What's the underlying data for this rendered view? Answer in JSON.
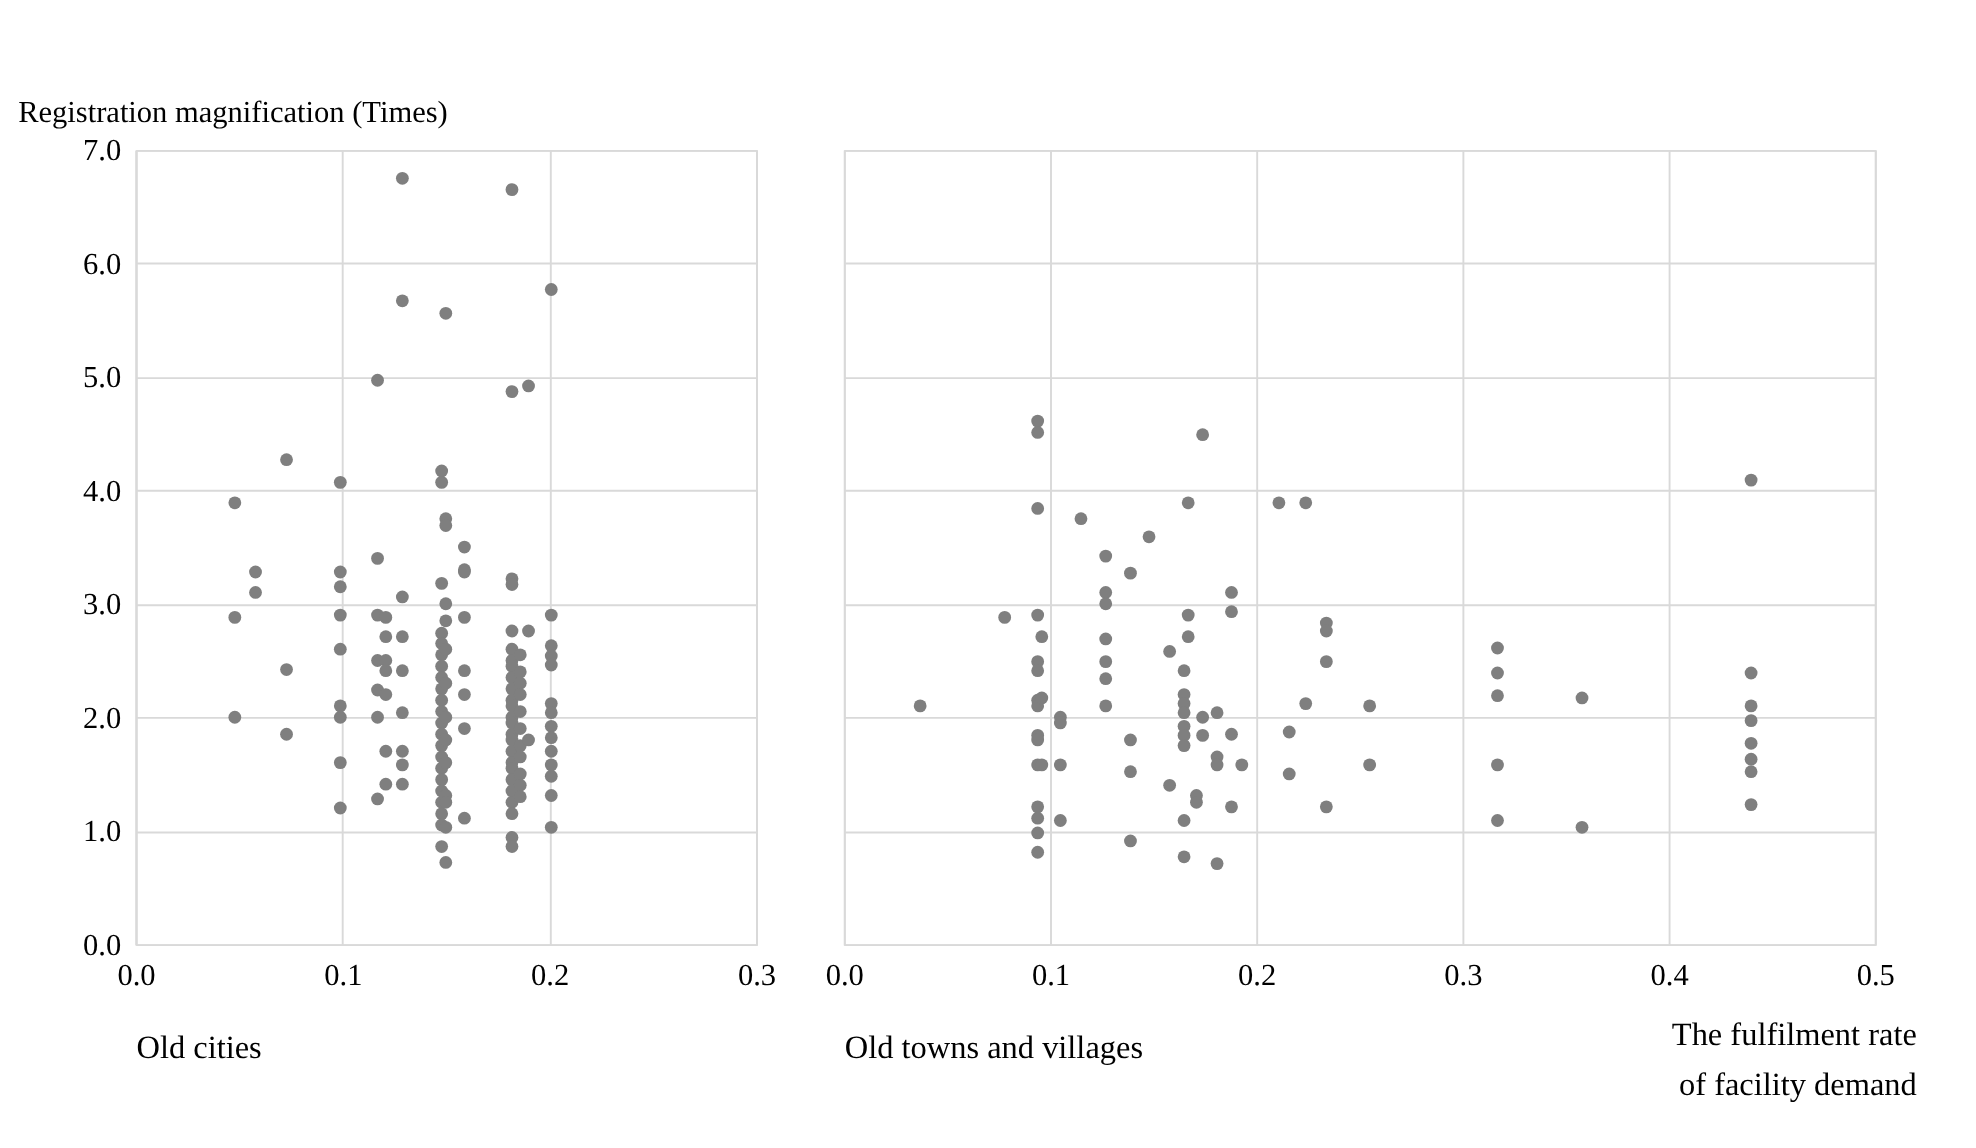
{
  "chart_data": [
    {
      "type": "scatter",
      "ylabel": "Registration magnification (Times)",
      "xlabel": "Old cities",
      "xlim": [
        0,
        0.3
      ],
      "xticks": [
        {
          "value": 0,
          "label": "0.0"
        },
        0.1,
        0.2,
        0.3
      ],
      "ylim": [
        0,
        7
      ],
      "yticks": [
        {
          "value": 0,
          "label": "0.0"
        },
        {
          "value": 1,
          "label": "1.0"
        },
        {
          "value": 2,
          "label": "2.0"
        },
        {
          "value": 3,
          "label": "3.0"
        },
        {
          "value": 4,
          "label": "4.0"
        },
        {
          "value": 5,
          "label": "5.0"
        },
        {
          "value": 6,
          "label": "6.0"
        },
        {
          "value": 7,
          "label": "7.0"
        }
      ],
      "grid": true,
      "marker": "circle",
      "series": [
        {
          "color": "#7f7f7f",
          "x": [
            0.048,
            0.048,
            0.048,
            0.058,
            0.058,
            0.073,
            0.073,
            0.073,
            0.099,
            0.099,
            0.099,
            0.099,
            0.099,
            0.099,
            0.099,
            0.099,
            0.099,
            0.117,
            0.117,
            0.117,
            0.117,
            0.117,
            0.117,
            0.117,
            0.121,
            0.121,
            0.121,
            0.121,
            0.121,
            0.121,
            0.121,
            0.129,
            0.129,
            0.129,
            0.129,
            0.129,
            0.129,
            0.129,
            0.129,
            0.129,
            0.148,
            0.148,
            0.148,
            0.148,
            0.148,
            0.148,
            0.148,
            0.148,
            0.148,
            0.148,
            0.148,
            0.148,
            0.148,
            0.148,
            0.148,
            0.148,
            0.148,
            0.148,
            0.148,
            0.148,
            0.148,
            0.148,
            0.15,
            0.15,
            0.15,
            0.15,
            0.15,
            0.15,
            0.15,
            0.15,
            0.15,
            0.15,
            0.15,
            0.15,
            0.15,
            0.15,
            0.159,
            0.159,
            0.159,
            0.159,
            0.159,
            0.159,
            0.159,
            0.159,
            0.182,
            0.182,
            0.182,
            0.182,
            0.182,
            0.182,
            0.182,
            0.182,
            0.182,
            0.182,
            0.182,
            0.182,
            0.182,
            0.182,
            0.182,
            0.182,
            0.182,
            0.182,
            0.182,
            0.182,
            0.182,
            0.182,
            0.182,
            0.182,
            0.182,
            0.186,
            0.186,
            0.186,
            0.186,
            0.186,
            0.186,
            0.186,
            0.186,
            0.186,
            0.186,
            0.186,
            0.19,
            0.19,
            0.19,
            0.201,
            0.201,
            0.201,
            0.201,
            0.201,
            0.201,
            0.201,
            0.201,
            0.201,
            0.201,
            0.201,
            0.201,
            0.201,
            0.201
          ],
          "values": [
            3.89,
            2.88,
            2.0,
            3.28,
            3.1,
            4.27,
            2.42,
            1.85,
            4.07,
            3.28,
            3.15,
            2.9,
            2.6,
            2.1,
            2.0,
            1.6,
            1.2,
            4.97,
            3.4,
            2.9,
            2.5,
            2.24,
            2.0,
            1.28,
            2.88,
            2.71,
            2.5,
            2.41,
            2.2,
            1.7,
            1.41,
            6.75,
            5.67,
            3.06,
            2.71,
            2.41,
            2.04,
            1.7,
            1.58,
            1.41,
            4.17,
            4.07,
            3.18,
            2.74,
            2.65,
            2.55,
            2.45,
            2.35,
            2.25,
            2.15,
            2.05,
            1.95,
            1.85,
            1.75,
            1.65,
            1.55,
            1.45,
            1.35,
            1.25,
            1.15,
            1.05,
            0.86,
            5.56,
            3.75,
            3.69,
            3.0,
            2.85,
            2.6,
            2.3,
            2.0,
            1.8,
            1.6,
            1.31,
            1.25,
            1.03,
            0.72,
            3.5,
            3.3,
            3.28,
            2.88,
            2.41,
            2.2,
            1.9,
            1.11,
            6.65,
            4.87,
            3.22,
            3.17,
            2.76,
            2.6,
            2.5,
            2.45,
            2.35,
            2.25,
            2.15,
            2.1,
            2.0,
            1.95,
            1.85,
            1.8,
            1.7,
            1.6,
            1.55,
            1.45,
            1.35,
            1.25,
            1.15,
            0.94,
            0.86,
            2.55,
            2.4,
            2.3,
            2.2,
            2.05,
            1.9,
            1.75,
            1.65,
            1.5,
            1.4,
            1.3,
            4.92,
            2.76,
            1.8,
            5.77,
            2.9,
            2.63,
            2.54,
            2.46,
            2.12,
            2.04,
            1.92,
            1.82,
            1.7,
            1.58,
            1.48,
            1.31,
            1.03
          ]
        }
      ]
    },
    {
      "type": "scatter",
      "xlabel": "Old towns and villages",
      "annotations": [
        "The fulfilment rate of facility demand"
      ],
      "xlim": [
        0,
        0.5
      ],
      "xticks": [
        {
          "value": 0,
          "label": "0.0"
        },
        0.1,
        0.2,
        0.3,
        0.4,
        0.5
      ],
      "ylim": [
        0,
        7
      ],
      "yticks": [
        0,
        1,
        2,
        3,
        4,
        5,
        6,
        7
      ],
      "tick_labels": "x",
      "grid": true,
      "marker": "circle",
      "series": [
        {
          "color": "#7f7f7f",
          "x": [
            0.037,
            0.078,
            0.094,
            0.094,
            0.094,
            0.094,
            0.094,
            0.094,
            0.094,
            0.094,
            0.094,
            0.094,
            0.094,
            0.094,
            0.094,
            0.094,
            0.094,
            0.096,
            0.096,
            0.096,
            0.105,
            0.105,
            0.105,
            0.105,
            0.115,
            0.127,
            0.127,
            0.127,
            0.127,
            0.127,
            0.127,
            0.127,
            0.139,
            0.139,
            0.139,
            0.139,
            0.148,
            0.158,
            0.158,
            0.165,
            0.165,
            0.165,
            0.165,
            0.165,
            0.165,
            0.165,
            0.165,
            0.165,
            0.167,
            0.167,
            0.167,
            0.171,
            0.171,
            0.174,
            0.174,
            0.174,
            0.181,
            0.181,
            0.181,
            0.181,
            0.188,
            0.188,
            0.188,
            0.188,
            0.193,
            0.211,
            0.216,
            0.216,
            0.224,
            0.224,
            0.234,
            0.234,
            0.234,
            0.234,
            0.255,
            0.255,
            0.317,
            0.317,
            0.317,
            0.317,
            0.317,
            0.358,
            0.358,
            0.44,
            0.44,
            0.44,
            0.44,
            0.44,
            0.44,
            0.44,
            0.44
          ],
          "values": [
            2.1,
            2.88,
            4.61,
            4.51,
            3.84,
            2.9,
            2.49,
            2.41,
            2.15,
            2.1,
            1.84,
            1.8,
            1.58,
            1.21,
            1.11,
            0.98,
            0.81,
            2.71,
            2.17,
            1.58,
            2.0,
            1.95,
            1.58,
            1.09,
            3.75,
            3.42,
            3.1,
            3.0,
            2.69,
            2.49,
            2.34,
            2.1,
            3.27,
            1.8,
            1.52,
            0.91,
            3.59,
            2.58,
            1.4,
            2.41,
            2.2,
            2.12,
            2.04,
            1.92,
            1.84,
            1.75,
            1.09,
            0.77,
            3.89,
            2.9,
            2.71,
            1.31,
            1.25,
            4.49,
            2.0,
            1.84,
            2.04,
            1.65,
            1.58,
            0.71,
            3.1,
            2.93,
            1.85,
            1.21,
            1.58,
            3.89,
            1.87,
            1.5,
            3.89,
            2.12,
            2.83,
            2.76,
            2.49,
            1.21,
            2.1,
            1.58,
            2.61,
            2.39,
            2.19,
            1.58,
            1.09,
            2.17,
            1.03,
            4.09,
            2.39,
            2.1,
            1.97,
            1.77,
            1.63,
            1.52,
            1.23
          ]
        }
      ]
    }
  ]
}
